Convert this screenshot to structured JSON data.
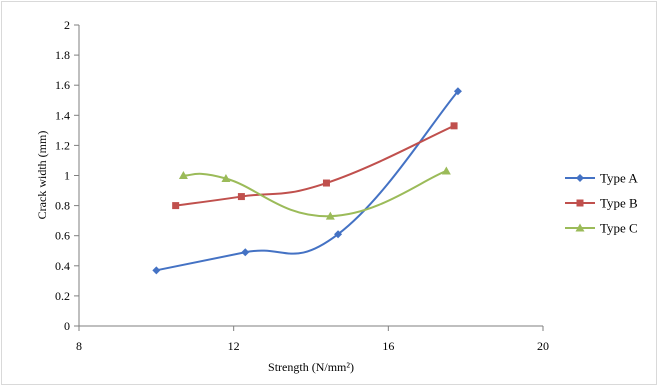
{
  "chart_data": {
    "type": "line",
    "title": "",
    "xlabel": "Strength (N/mm²)",
    "ylabel": "Crack width  (mm)",
    "xlim": [
      8,
      20
    ],
    "ylim": [
      0,
      2
    ],
    "x_ticks": [
      "8",
      "12",
      "16",
      "20"
    ],
    "y_ticks": [
      "0",
      "0.2",
      "0.4",
      "0.6",
      "0.8",
      "1",
      "1.2",
      "1.4",
      "1.6",
      "1.8",
      "2"
    ],
    "grid": false,
    "legend_position": "right",
    "smooth": true,
    "series": [
      {
        "name": "Type A",
        "color": "#4472c4",
        "marker": "diamond",
        "points": [
          [
            10.0,
            0.37
          ],
          [
            12.3,
            0.49
          ],
          [
            14.7,
            0.61
          ],
          [
            17.8,
            1.56
          ]
        ]
      },
      {
        "name": "Type B",
        "color": "#c0504d",
        "marker": "square",
        "points": [
          [
            10.5,
            0.8
          ],
          [
            12.2,
            0.86
          ],
          [
            14.4,
            0.95
          ],
          [
            17.7,
            1.33
          ]
        ]
      },
      {
        "name": "Type C",
        "color": "#9bbb59",
        "marker": "triangle",
        "points": [
          [
            10.7,
            1.0
          ],
          [
            11.8,
            0.98
          ],
          [
            14.5,
            0.73
          ],
          [
            17.5,
            1.03
          ]
        ]
      }
    ]
  }
}
